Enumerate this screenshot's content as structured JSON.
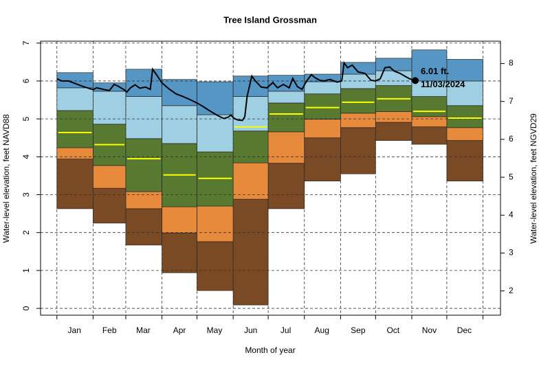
{
  "chart_data": {
    "type": "percentile-steps",
    "title": "Tree Island Grossman",
    "xlabel": "Month of year",
    "ylabel": "Water-level elevation, feet NAVD88",
    "y2label": "Water-level elevation, feet NGVD29",
    "grid": true,
    "xlim": [
      -14,
      380
    ],
    "month_edges": [
      0,
      31,
      59,
      90,
      120,
      151,
      181,
      212,
      243,
      273,
      304,
      334,
      365
    ],
    "xticks": [
      {
        "value": 15,
        "label": "Jan"
      },
      {
        "value": 45,
        "label": "Feb"
      },
      {
        "value": 74,
        "label": "Mar"
      },
      {
        "value": 105,
        "label": "Apr"
      },
      {
        "value": 135,
        "label": "May"
      },
      {
        "value": 166,
        "label": "Jun"
      },
      {
        "value": 196,
        "label": "Jul"
      },
      {
        "value": 227,
        "label": "Aug"
      },
      {
        "value": 258,
        "label": "Sep"
      },
      {
        "value": 288,
        "label": "Oct"
      },
      {
        "value": 319,
        "label": "Nov"
      },
      {
        "value": 349,
        "label": "Dec"
      }
    ],
    "ylim": [
      -0.18,
      7.05
    ],
    "yticks": [
      0,
      1,
      2,
      3,
      4,
      5,
      6,
      7
    ],
    "y2lim": [
      1.36,
      8.59
    ],
    "y2ticks": [
      2,
      3,
      4,
      5,
      6,
      7,
      8
    ],
    "band_colors": [
      "#7a4a25",
      "#e88a3c",
      "#577a30",
      "#9ecfe2",
      "#5596c5"
    ],
    "levels": [
      {
        "values": [
          2.63,
          2.25,
          1.67,
          0.94,
          0.47,
          0.09,
          2.63,
          3.36,
          3.55,
          4.43,
          4.33,
          3.36
        ]
      },
      {
        "values": [
          3.94,
          3.17,
          2.63,
          1.99,
          1.76,
          2.88,
          3.83,
          4.5,
          4.77,
          4.91,
          4.79,
          4.43
        ]
      },
      {
        "values": [
          4.24,
          3.77,
          3.08,
          2.68,
          2.7,
          3.84,
          4.66,
          4.99,
          5.15,
          5.19,
          5.06,
          4.77
        ]
      },
      {
        "values": [
          5.22,
          4.86,
          4.48,
          4.35,
          4.13,
          4.68,
          5.42,
          5.66,
          5.8,
          5.88,
          5.59,
          5.35
        ]
      },
      {
        "values": [
          5.82,
          5.73,
          5.59,
          5.35,
          5.11,
          5.59,
          5.73,
          5.98,
          6.18,
          6.27,
          6.0,
          6.0
        ]
      },
      {
        "values": [
          6.22,
          5.95,
          6.31,
          6.04,
          5.98,
          6.13,
          6.15,
          6.18,
          6.49,
          6.6,
          6.82,
          6.57
        ]
      }
    ],
    "median": {
      "color": "#ffff00",
      "values": [
        4.64,
        4.32,
        3.95,
        3.52,
        3.43,
        4.79,
        5.13,
        5.3,
        5.44,
        5.53,
        5.2,
        5.02
      ]
    },
    "current": {
      "color": "#000000",
      "x": [
        0,
        4,
        10,
        16,
        22,
        28,
        31,
        34,
        37,
        41,
        45,
        49,
        52,
        57,
        60,
        63,
        67,
        71,
        76,
        80,
        82,
        85,
        90,
        96,
        102,
        108,
        114,
        120,
        125,
        131,
        137,
        143,
        147,
        149,
        152,
        155,
        159,
        161,
        163,
        167,
        170,
        175,
        180,
        185,
        189,
        194,
        199,
        202,
        206,
        210,
        214,
        218,
        221,
        225,
        229,
        234,
        240,
        244,
        246,
        249,
        253,
        258,
        264,
        269,
        273,
        277,
        281,
        285,
        289,
        294,
        299,
        302,
        307
      ],
      "values": [
        6.06,
        6.0,
        6.0,
        5.93,
        5.86,
        5.8,
        5.77,
        5.82,
        5.8,
        5.77,
        5.75,
        5.91,
        5.87,
        5.78,
        5.71,
        5.82,
        5.9,
        5.81,
        5.84,
        5.78,
        6.31,
        6.18,
        5.95,
        5.79,
        5.66,
        5.59,
        5.51,
        5.42,
        5.33,
        5.21,
        5.1,
        5.01,
        5.05,
        5.1,
        5.01,
        4.97,
        4.96,
        5.06,
        5.6,
        6.13,
        6.0,
        5.84,
        5.82,
        5.96,
        5.82,
        5.91,
        5.82,
        6.07,
        5.85,
        5.78,
        6.0,
        6.17,
        6.09,
        6.02,
        6.0,
        6.04,
        5.97,
        6.0,
        6.48,
        6.35,
        6.42,
        6.24,
        6.2,
        6.02,
        6.0,
        6.06,
        6.35,
        6.37,
        6.26,
        6.2,
        6.11,
        6.06,
        6.01
      ],
      "value_label": "6.01 ft.",
      "date_label": "11/03/2024"
    }
  }
}
